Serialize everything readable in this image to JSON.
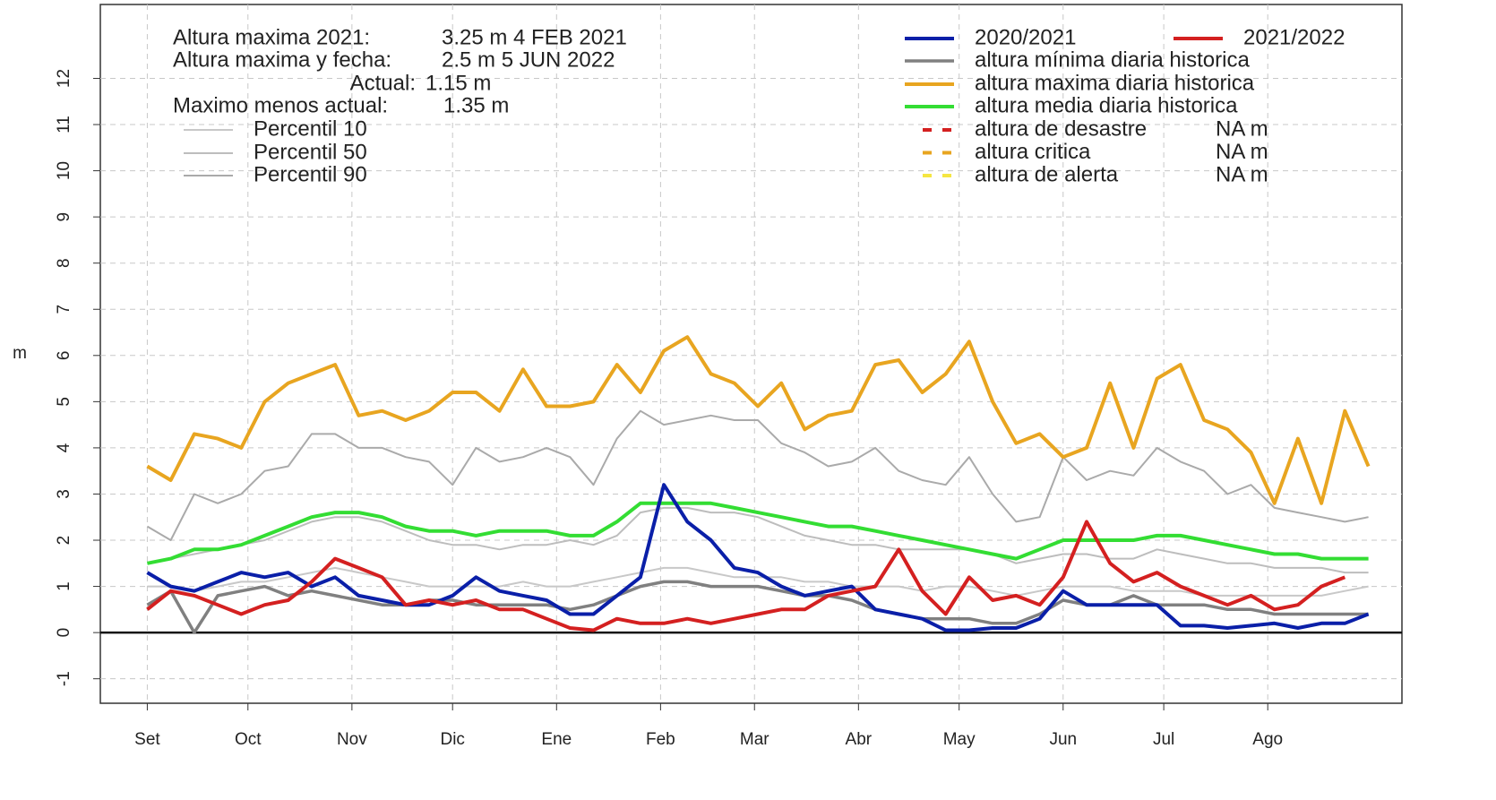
{
  "chart_data": {
    "type": "line",
    "y_label": "m",
    "xlim": [
      -14,
      374
    ],
    "ylim": [
      -1.53,
      13.6
    ],
    "xticks": [
      {
        "value": 0,
        "label": "Set"
      },
      {
        "value": 30,
        "label": "Oct"
      },
      {
        "value": 61,
        "label": "Nov"
      },
      {
        "value": 91,
        "label": "Dic"
      },
      {
        "value": 122,
        "label": "Ene"
      },
      {
        "value": 153,
        "label": "Feb"
      },
      {
        "value": 181,
        "label": "Mar"
      },
      {
        "value": 212,
        "label": "Abr"
      },
      {
        "value": 242,
        "label": "May"
      },
      {
        "value": 273,
        "label": "Jun"
      },
      {
        "value": 303,
        "label": "Jul"
      },
      {
        "value": 334,
        "label": "Ago"
      }
    ],
    "yticks": [
      -1,
      0,
      1,
      2,
      3,
      4,
      5,
      6,
      7,
      8,
      9,
      10,
      11,
      12
    ],
    "grid": true,
    "reference_line": 0,
    "x": [
      0,
      7,
      14,
      21,
      28,
      35,
      42,
      49,
      56,
      63,
      70,
      77,
      84,
      91,
      98,
      105,
      112,
      119,
      126,
      133,
      140,
      147,
      154,
      161,
      168,
      175,
      182,
      189,
      196,
      203,
      210,
      217,
      224,
      231,
      238,
      245,
      252,
      259,
      266,
      273,
      280,
      287,
      294,
      301,
      308,
      315,
      322,
      329,
      336,
      343,
      350,
      357,
      364
    ],
    "series": [
      {
        "name": "2020/2021",
        "color": "#0a1fa8",
        "values": [
          1.3,
          1.0,
          0.9,
          1.1,
          1.3,
          1.2,
          1.3,
          1.0,
          1.2,
          0.8,
          0.7,
          0.6,
          0.6,
          0.8,
          1.2,
          0.9,
          0.8,
          0.7,
          0.4,
          0.4,
          0.8,
          1.2,
          3.2,
          2.4,
          2.0,
          1.4,
          1.3,
          1.0,
          0.8,
          0.9,
          1.0,
          0.5,
          0.4,
          0.3,
          0.05,
          0.05,
          0.1,
          0.1,
          0.3,
          0.9,
          0.6,
          0.6,
          0.6,
          0.6,
          0.15,
          0.15,
          0.1,
          0.15,
          0.2,
          0.1,
          0.2,
          0.2,
          0.4
        ]
      },
      {
        "name": "2021/2022",
        "color": "#d42020",
        "values": [
          0.5,
          0.9,
          0.8,
          0.6,
          0.4,
          0.6,
          0.7,
          1.1,
          1.6,
          1.4,
          1.2,
          0.6,
          0.7,
          0.6,
          0.7,
          0.5,
          0.5,
          0.3,
          0.1,
          0.05,
          0.3,
          0.2,
          0.2,
          0.3,
          0.2,
          0.3,
          0.4,
          0.5,
          0.5,
          0.8,
          0.9,
          1.0,
          1.8,
          0.9,
          0.4,
          1.2,
          0.7,
          0.8,
          0.6,
          1.2,
          2.4,
          1.5,
          1.1,
          1.3,
          1.0,
          0.8,
          0.6,
          0.8,
          0.5,
          0.6,
          1.0,
          1.2,
          null
        ]
      },
      {
        "name": "altura mínima diaria historica",
        "color": "#808080",
        "values": [
          0.6,
          0.9,
          0.0,
          0.8,
          0.9,
          1.0,
          0.8,
          0.9,
          0.8,
          0.7,
          0.6,
          0.6,
          0.7,
          0.7,
          0.6,
          0.6,
          0.6,
          0.6,
          0.5,
          0.6,
          0.8,
          1.0,
          1.1,
          1.1,
          1.0,
          1.0,
          1.0,
          0.9,
          0.8,
          0.8,
          0.7,
          0.5,
          0.4,
          0.3,
          0.3,
          0.3,
          0.2,
          0.2,
          0.4,
          0.7,
          0.6,
          0.6,
          0.8,
          0.6,
          0.6,
          0.6,
          0.5,
          0.5,
          0.4,
          0.4,
          0.4,
          0.4,
          0.4
        ]
      },
      {
        "name": "altura maxima diaria historica",
        "color": "#e8a520",
        "values": [
          3.6,
          3.3,
          4.3,
          4.2,
          4.0,
          5.0,
          5.4,
          5.6,
          5.8,
          4.7,
          4.8,
          4.6,
          4.8,
          5.2,
          5.2,
          4.8,
          5.7,
          4.9,
          4.9,
          5.0,
          5.8,
          5.2,
          6.1,
          6.4,
          5.6,
          5.4,
          4.9,
          5.4,
          4.4,
          4.7,
          4.8,
          5.8,
          5.9,
          5.2,
          5.6,
          6.3,
          5.0,
          4.1,
          4.3,
          3.8,
          4.0,
          5.4,
          4.0,
          5.5,
          5.8,
          4.6,
          4.4,
          3.9,
          2.8,
          4.2,
          2.8,
          4.8,
          3.6
        ]
      },
      {
        "name": "altura media diaria historica",
        "color": "#33dd33",
        "values": [
          1.5,
          1.6,
          1.8,
          1.8,
          1.9,
          2.1,
          2.3,
          2.5,
          2.6,
          2.6,
          2.5,
          2.3,
          2.2,
          2.2,
          2.1,
          2.2,
          2.2,
          2.2,
          2.1,
          2.1,
          2.4,
          2.8,
          2.8,
          2.8,
          2.8,
          2.7,
          2.6,
          2.5,
          2.4,
          2.3,
          2.3,
          2.2,
          2.1,
          2.0,
          1.9,
          1.8,
          1.7,
          1.6,
          1.8,
          2.0,
          2.0,
          2.0,
          2.0,
          2.1,
          2.1,
          2.0,
          1.9,
          1.8,
          1.7,
          1.7,
          1.6,
          1.6,
          1.6
        ]
      },
      {
        "name": "Percentil 10",
        "color": "#c8c8c8",
        "values": [
          1.0,
          1.0,
          0.9,
          1.0,
          1.1,
          1.1,
          1.2,
          1.3,
          1.4,
          1.3,
          1.2,
          1.1,
          1.0,
          1.0,
          1.0,
          1.0,
          1.1,
          1.0,
          1.0,
          1.1,
          1.2,
          1.3,
          1.4,
          1.4,
          1.3,
          1.2,
          1.2,
          1.2,
          1.1,
          1.1,
          1.0,
          1.0,
          1.0,
          0.9,
          1.0,
          1.0,
          0.9,
          0.8,
          0.9,
          1.0,
          1.0,
          1.0,
          0.9,
          0.9,
          0.9,
          0.8,
          0.8,
          0.8,
          0.8,
          0.8,
          0.8,
          0.9,
          1.0
        ]
      },
      {
        "name": "Percentil 50",
        "color": "#bdbdbd",
        "values": [
          1.5,
          1.6,
          1.7,
          1.8,
          1.9,
          2.0,
          2.2,
          2.4,
          2.5,
          2.5,
          2.4,
          2.2,
          2.0,
          1.9,
          1.9,
          1.8,
          1.9,
          1.9,
          2.0,
          1.9,
          2.1,
          2.6,
          2.7,
          2.7,
          2.6,
          2.6,
          2.5,
          2.3,
          2.1,
          2.0,
          1.9,
          1.9,
          1.8,
          1.8,
          1.8,
          1.8,
          1.7,
          1.5,
          1.6,
          1.7,
          1.7,
          1.6,
          1.6,
          1.8,
          1.7,
          1.6,
          1.5,
          1.5,
          1.4,
          1.4,
          1.4,
          1.3,
          1.3
        ]
      },
      {
        "name": "Percentil 90",
        "color": "#aaaaaa",
        "values": [
          2.3,
          2.0,
          3.0,
          2.8,
          3.0,
          3.5,
          3.6,
          4.3,
          4.3,
          4.0,
          4.0,
          3.8,
          3.7,
          3.2,
          4.0,
          3.7,
          3.8,
          4.0,
          3.8,
          3.2,
          4.2,
          4.8,
          4.5,
          4.6,
          4.7,
          4.6,
          4.6,
          4.1,
          3.9,
          3.6,
          3.7,
          4.0,
          3.5,
          3.3,
          3.2,
          3.8,
          3.0,
          2.4,
          2.5,
          3.8,
          3.3,
          3.5,
          3.4,
          4.0,
          3.7,
          3.5,
          3.0,
          3.2,
          2.7,
          2.6,
          2.5,
          2.4,
          2.5
        ]
      }
    ],
    "thresholds": [
      {
        "name": "altura de desastre",
        "color": "#d42020",
        "value_label": "NA m"
      },
      {
        "name": "altura critica",
        "color": "#e8a520",
        "value_label": "NA m"
      },
      {
        "name": "altura de alerta",
        "color": "#f5e642",
        "value_label": "NA m"
      }
    ],
    "annotations": [
      {
        "label": "Altura maxima 2021:",
        "value": "3.25 m 4 FEB 2021"
      },
      {
        "label": "Altura maxima y fecha:",
        "value": "2.5 m 5 JUN 2022"
      },
      {
        "label": "Actual:",
        "value": "1.15 m"
      },
      {
        "label": "Maximo menos actual:",
        "value": "1.35 m"
      }
    ]
  }
}
